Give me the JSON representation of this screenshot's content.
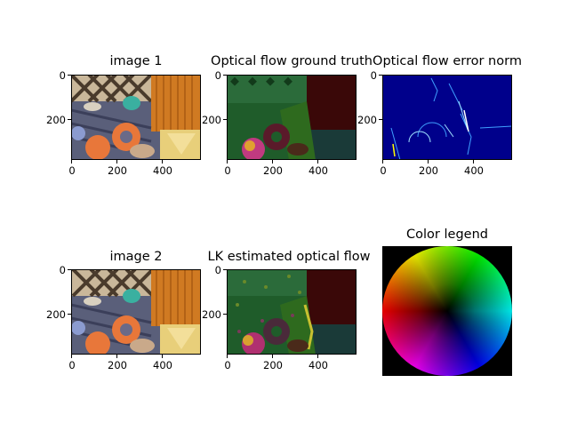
{
  "chart_data": [
    {
      "type": "image",
      "title": "image 1",
      "xticks": [
        "0",
        "200",
        "400"
      ],
      "yticks": [
        "0",
        "200"
      ]
    },
    {
      "type": "image",
      "title": "Optical flow ground truth",
      "xticks": [
        "0",
        "200",
        "400"
      ],
      "yticks": [
        "0",
        "200"
      ]
    },
    {
      "type": "image",
      "title": "Optical flow error norm",
      "xticks": [
        "0",
        "200",
        "400"
      ],
      "yticks": [
        "0",
        "200"
      ]
    },
    {
      "type": "image",
      "title": "image 2",
      "xticks": [
        "0",
        "200",
        "400"
      ],
      "yticks": [
        "0",
        "200"
      ]
    },
    {
      "type": "image",
      "title": "LK estimated optical flow",
      "xticks": [
        "0",
        "200",
        "400"
      ],
      "yticks": [
        "0",
        "200"
      ]
    },
    {
      "type": "image",
      "title": "Color legend",
      "xticks": [],
      "yticks": []
    }
  ],
  "colors": {
    "error_background": "#00008b",
    "flow_green": "#1f5c2a",
    "flow_darkred": "#3a0808",
    "legend_background": "#000000"
  }
}
